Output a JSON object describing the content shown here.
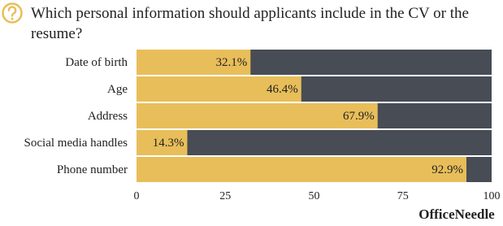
{
  "chart_data": {
    "type": "bar",
    "orientation": "horizontal",
    "title": "Which personal information should applicants include in the CV or the resume?",
    "categories": [
      "Date of birth",
      "Age",
      "Address",
      "Social media handles",
      "Phone number"
    ],
    "values": [
      32.1,
      46.4,
      67.9,
      14.3,
      92.9
    ],
    "value_labels": [
      "32.1%",
      "46.4%",
      "67.9%",
      "14.3%",
      "92.9%"
    ],
    "color": "#e8be5a",
    "track_color": "#474c55",
    "xlim": [
      0,
      100
    ],
    "xticks": [
      0,
      25,
      50,
      75,
      100
    ],
    "grid": false,
    "watermark": "OfficeNeedle"
  }
}
